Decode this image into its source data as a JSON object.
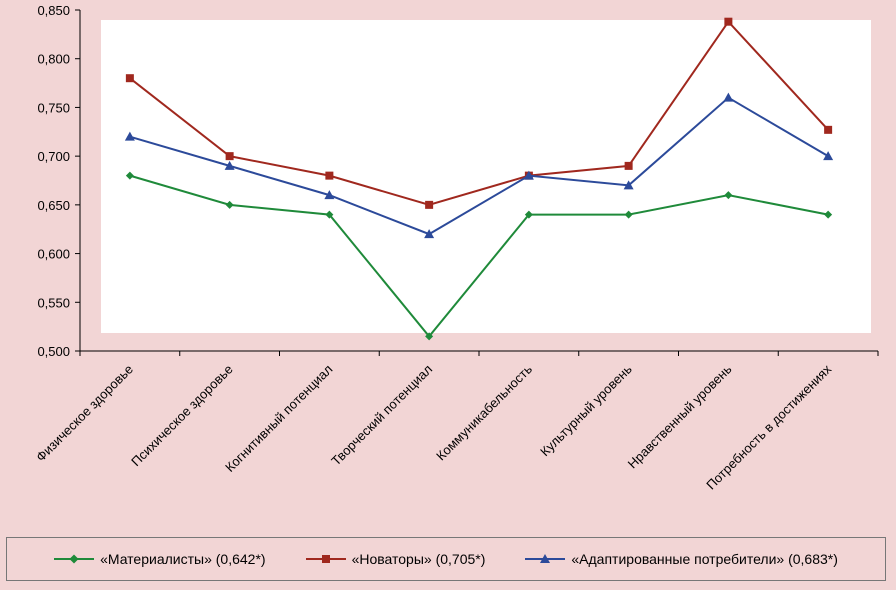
{
  "chart_data": {
    "type": "line",
    "categories": [
      "Физическое здоровье",
      "Психическое здоровье",
      "Когнитивный потенциал",
      "Творческий потенциал",
      "Коммуникабельность",
      "Культурный уровень",
      "Нравственный уровень",
      "Потребность в достижениях"
    ],
    "yticks": [
      "0,500",
      "0,550",
      "0,600",
      "0,650",
      "0,700",
      "0,750",
      "0,800",
      "0,850"
    ],
    "ylim": [
      0.5,
      0.85
    ],
    "series": [
      {
        "name": "«Материалисты» (0,642*)",
        "color": "#1f8a3a",
        "marker": "diamond",
        "values": [
          0.68,
          0.65,
          0.64,
          0.515,
          0.64,
          0.64,
          0.66,
          0.64
        ]
      },
      {
        "name": "«Новаторы» (0,705*)",
        "color": "#a0281e",
        "marker": "square",
        "values": [
          0.78,
          0.7,
          0.68,
          0.65,
          0.68,
          0.69,
          0.838,
          0.727
        ]
      },
      {
        "name": "«Адаптированные потребители» (0,683*)",
        "color": "#2c4a9a",
        "marker": "triangle",
        "values": [
          0.72,
          0.69,
          0.66,
          0.62,
          0.68,
          0.67,
          0.76,
          0.7
        ]
      }
    ]
  }
}
